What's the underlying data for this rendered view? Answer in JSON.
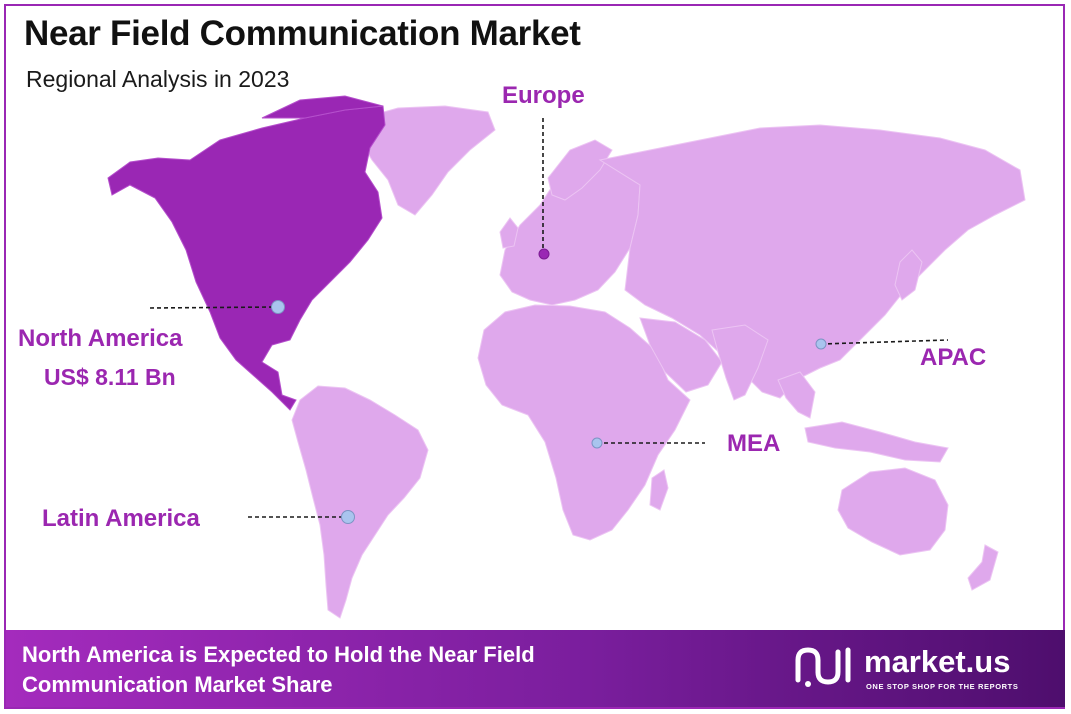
{
  "header": {
    "title": "Near Field Communication Market",
    "subtitle": "Regional Analysis in 2023"
  },
  "regions": {
    "north_america": {
      "name": "North America",
      "value": "US$ 8.11 Bn",
      "highlighted": true
    },
    "europe": {
      "name": "Europe",
      "highlighted": false
    },
    "apac": {
      "name": "APAC",
      "highlighted": false
    },
    "mea": {
      "name": "MEA",
      "highlighted": false
    },
    "latin_america": {
      "name": "Latin America",
      "highlighted": false
    }
  },
  "footer": {
    "line1": "North America is Expected to Hold the Near Field",
    "line2": "Communication Market Share"
  },
  "brand": {
    "name": "market.us",
    "tagline": "ONE STOP SHOP FOR THE REPORTS"
  },
  "colors": {
    "highlight": "#9a27b4",
    "land": "#dfa8ec",
    "marker": "#a9c4ee",
    "label": "#9b27b0"
  }
}
